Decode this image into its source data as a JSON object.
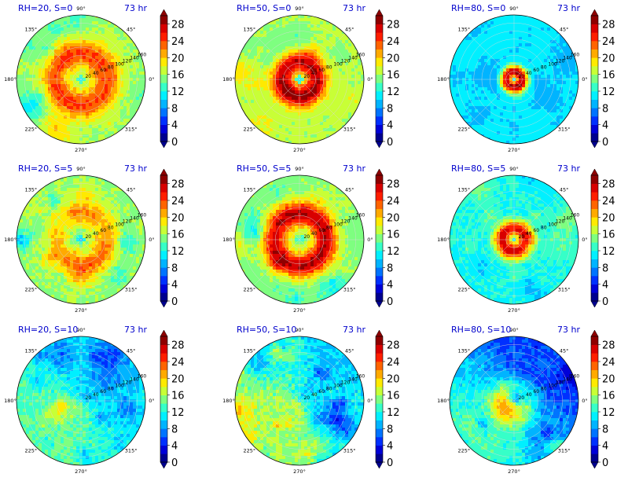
{
  "chart_data": {
    "type": "heatmap",
    "levels": [
      0,
      2,
      4,
      6,
      8,
      10,
      12,
      14,
      16,
      18,
      20,
      22,
      24,
      26,
      28
    ],
    "colorbar_ticks": [
      "0",
      "4",
      "8",
      "12",
      "16",
      "20",
      "24",
      "28"
    ],
    "colors": [
      "#00008f",
      "#0000d8",
      "#0030ff",
      "#0074ff",
      "#00b4ff",
      "#00f0ff",
      "#36ffc8",
      "#7eff80",
      "#c8ff36",
      "#ffea00",
      "#ffaa00",
      "#ff6400",
      "#ff1e00",
      "#d80000",
      "#8f0000"
    ],
    "angle_labels": [
      "0°",
      "45°",
      "90°",
      "135°",
      "180°",
      "225°",
      "270°",
      "315°"
    ],
    "radial_labels": [
      "20",
      "40",
      "60",
      "80",
      "100",
      "120",
      "140",
      "160"
    ],
    "time_label": "73 hr",
    "panels": [
      {
        "title": "RH=20, S=0",
        "peak": 24,
        "rmax": 0.4,
        "width": 0.22,
        "eye": 0.05,
        "bg": 16.0,
        "bgdrop": 0.0,
        "seed": 11,
        "noise": 3.0
      },
      {
        "title": "RH=50, S=0",
        "peak": 28,
        "rmax": 0.27,
        "width": 0.17,
        "eye": 0.05,
        "bg": 16.5,
        "bgdrop": 0.0,
        "seed": 12,
        "noise": 2.5
      },
      {
        "title": "RH=80, S=0",
        "peak": 28,
        "rmax": 0.12,
        "width": 0.1,
        "eye": 0.03,
        "bg": 10.5,
        "bgdrop": 0.0,
        "seed": 13,
        "noise": 2.0
      },
      {
        "title": "RH=20, S=5",
        "peak": 22,
        "rmax": 0.38,
        "width": 0.22,
        "eye": 0.05,
        "bg": 15.5,
        "bgdrop": 0.0,
        "seed": 14,
        "noise": 4.0
      },
      {
        "title": "RH=50, S=5",
        "peak": 28,
        "rmax": 0.4,
        "width": 0.2,
        "eye": 0.07,
        "bg": 15.0,
        "bgdrop": 0.0,
        "seed": 15,
        "noise": 3.5
      },
      {
        "title": "RH=80, S=5",
        "peak": 27,
        "rmax": 0.18,
        "width": 0.14,
        "eye": 0.04,
        "bg": 12.0,
        "bgdrop": 0.0,
        "seed": 16,
        "noise": 3.0
      },
      {
        "title": "RH=20, S=10",
        "peak": 12,
        "rmax": 0.3,
        "width": 0.3,
        "eye": 0.0,
        "bg": 12.0,
        "bgdrop": 2.5,
        "seed": 17,
        "noise": 4.5
      },
      {
        "title": "RH=50, S=10",
        "peak": 14,
        "rmax": 0.3,
        "width": 0.3,
        "eye": 0.0,
        "bg": 13.0,
        "bgdrop": 3.0,
        "seed": 18,
        "noise": 5.5
      },
      {
        "title": "RH=80, S=10",
        "peak": 16,
        "rmax": 0.2,
        "width": 0.2,
        "eye": 0.0,
        "bg": 9.0,
        "bgdrop": 4.5,
        "seed": 19,
        "noise": 4.5
      }
    ]
  }
}
